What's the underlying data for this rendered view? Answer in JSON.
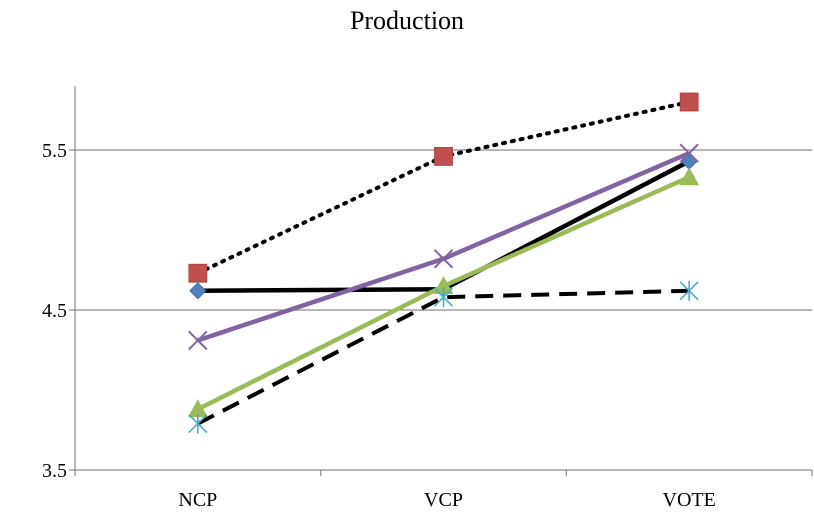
{
  "chart_data": {
    "type": "line",
    "title": "Production",
    "xlabel": "",
    "ylabel": "",
    "categories": [
      "NCP",
      "VCP",
      "VOTE"
    ],
    "ylim": [
      3.5,
      5.9
    ],
    "yticks": [
      3.5,
      4.5,
      5.5
    ],
    "ytick_labels": [
      "3.5",
      "4.5",
      "5.5"
    ],
    "grid": "horizontal",
    "legend": "none",
    "series": [
      {
        "values": [
          4.62,
          4.63,
          5.43
        ],
        "color": "#000000",
        "line_style": "solid",
        "marker": "diamond",
        "marker_color": "#4f81bd"
      },
      {
        "values": [
          4.73,
          5.46,
          5.8
        ],
        "color": "#000000",
        "line_style": "dotted",
        "marker": "square",
        "marker_color": "#c0504d"
      },
      {
        "values": [
          4.31,
          4.82,
          5.48
        ],
        "color": "#8064a2",
        "line_style": "solid",
        "marker": "x",
        "marker_color": "#8064a2"
      },
      {
        "values": [
          3.88,
          4.65,
          5.33
        ],
        "color": "#9bbb59",
        "line_style": "solid",
        "marker": "triangle",
        "marker_color": "#9bbb59"
      },
      {
        "values": [
          3.79,
          4.58,
          4.62
        ],
        "color": "#000000",
        "line_style": "dashed",
        "marker": "asterisk",
        "marker_color": "#4bacc6"
      }
    ]
  }
}
